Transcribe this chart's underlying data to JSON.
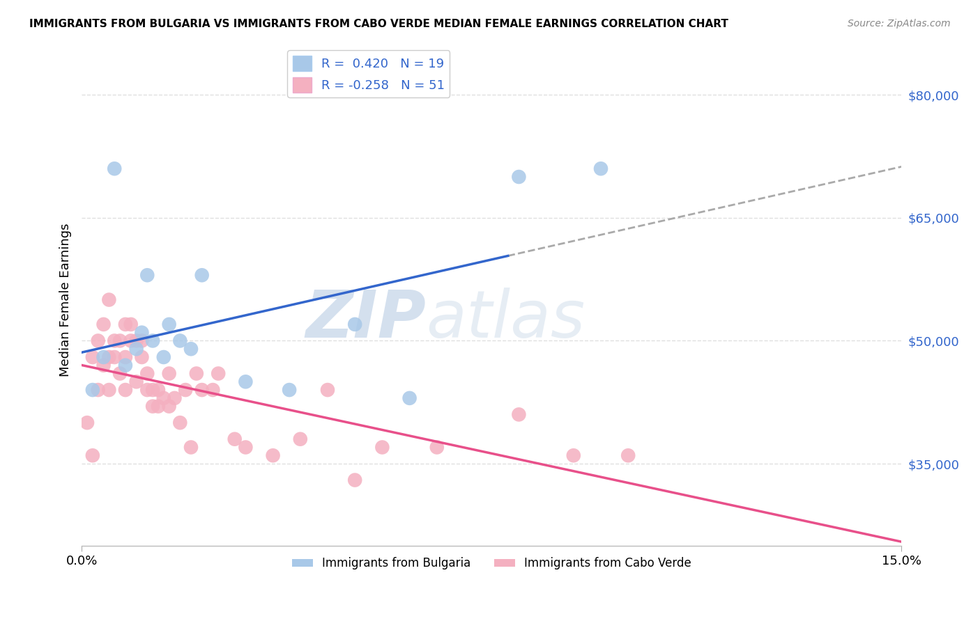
{
  "title": "IMMIGRANTS FROM BULGARIA VS IMMIGRANTS FROM CABO VERDE MEDIAN FEMALE EARNINGS CORRELATION CHART",
  "source": "Source: ZipAtlas.com",
  "ylabel": "Median Female Earnings",
  "xlim": [
    0.0,
    0.15
  ],
  "ylim": [
    25000,
    85000
  ],
  "yticks": [
    35000,
    50000,
    65000,
    80000
  ],
  "ytick_labels": [
    "$35,000",
    "$50,000",
    "$65,000",
    "$80,000"
  ],
  "legend_labels": [
    "Immigrants from Bulgaria",
    "Immigrants from Cabo Verde"
  ],
  "bulgaria_color": "#a8c8e8",
  "cabo_verde_color": "#f4b0c0",
  "bulgaria_line_color": "#3366cc",
  "cabo_verde_line_color": "#e8508a",
  "r_bulgaria": 0.42,
  "n_bulgaria": 19,
  "r_cabo_verde": -0.258,
  "n_cabo_verde": 51,
  "bulgaria_scatter_x": [
    0.002,
    0.004,
    0.006,
    0.008,
    0.01,
    0.011,
    0.012,
    0.013,
    0.015,
    0.016,
    0.018,
    0.02,
    0.022,
    0.03,
    0.038,
    0.05,
    0.06,
    0.08,
    0.095
  ],
  "bulgaria_scatter_y": [
    44000,
    48000,
    71000,
    47000,
    49000,
    51000,
    58000,
    50000,
    48000,
    52000,
    50000,
    49000,
    58000,
    45000,
    44000,
    52000,
    43000,
    70000,
    71000
  ],
  "cabo_verde_scatter_x": [
    0.001,
    0.002,
    0.002,
    0.003,
    0.003,
    0.004,
    0.004,
    0.005,
    0.005,
    0.005,
    0.006,
    0.006,
    0.007,
    0.007,
    0.008,
    0.008,
    0.008,
    0.009,
    0.009,
    0.01,
    0.01,
    0.011,
    0.011,
    0.012,
    0.012,
    0.013,
    0.013,
    0.014,
    0.014,
    0.015,
    0.016,
    0.016,
    0.017,
    0.018,
    0.019,
    0.02,
    0.021,
    0.022,
    0.024,
    0.025,
    0.028,
    0.03,
    0.035,
    0.04,
    0.045,
    0.05,
    0.055,
    0.065,
    0.08,
    0.09,
    0.1
  ],
  "cabo_verde_scatter_y": [
    40000,
    36000,
    48000,
    44000,
    50000,
    47000,
    52000,
    44000,
    48000,
    55000,
    48000,
    50000,
    50000,
    46000,
    52000,
    48000,
    44000,
    50000,
    52000,
    45000,
    50000,
    50000,
    48000,
    44000,
    46000,
    42000,
    44000,
    42000,
    44000,
    43000,
    42000,
    46000,
    43000,
    40000,
    44000,
    37000,
    46000,
    44000,
    44000,
    46000,
    38000,
    37000,
    36000,
    38000,
    44000,
    33000,
    37000,
    37000,
    41000,
    36000,
    36000
  ],
  "background_color": "#ffffff",
  "grid_color": "#e0e0e0",
  "watermark_zip": "ZIP",
  "watermark_atlas": "atlas",
  "watermark_color": "#ccd8e8"
}
